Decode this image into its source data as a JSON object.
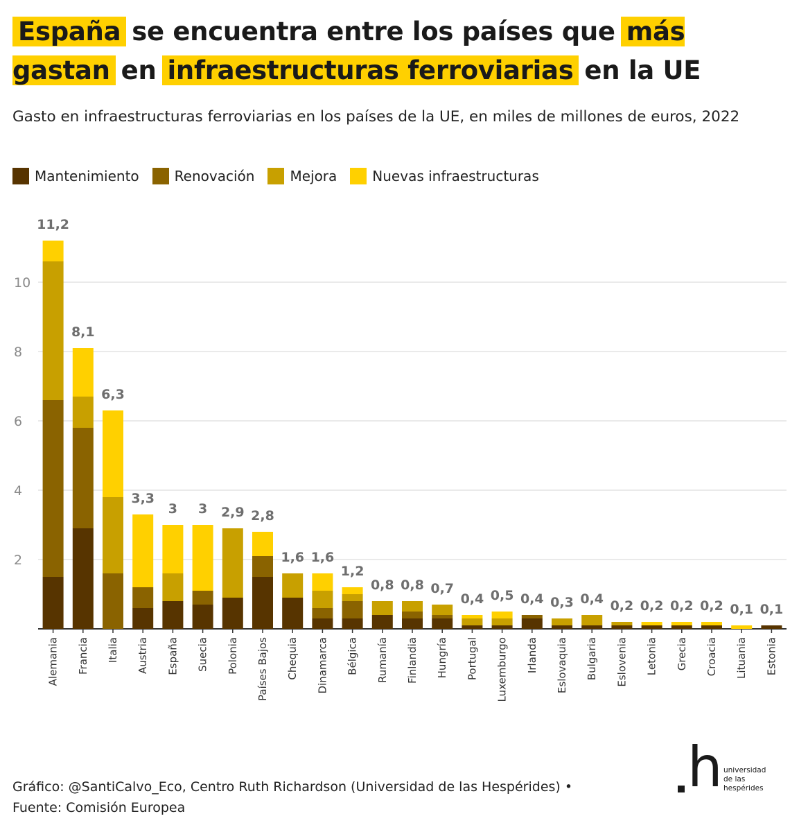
{
  "title": {
    "hl1": "España",
    "t1": "se encuentra entre los países que",
    "hl2": "más gastan",
    "t2": "en",
    "hl3": "infraestructuras ferroviarias",
    "t3": "en la UE"
  },
  "subtitle": "Gasto en infraestructuras ferroviarias en los países de la UE, en miles de millones de euros, 2022",
  "legend": [
    {
      "label": "Mantenimiento",
      "color": "#573400"
    },
    {
      "label": "Renovación",
      "color": "#8a6300"
    },
    {
      "label": "Mejora",
      "color": "#c8a000"
    },
    {
      "label": "Nuevas infraestructuras",
      "color": "#ffd000"
    }
  ],
  "chart_data": {
    "type": "bar",
    "stacked": true,
    "categories": [
      "Alemania",
      "Francia",
      "Italia",
      "Austria",
      "España",
      "Suecia",
      "Polonia",
      "Países Bajos",
      "Chequia",
      "Dinamarca",
      "Bélgica",
      "Rumanía",
      "Finlandia",
      "Hungría",
      "Portugal",
      "Luxemburgo",
      "Irlanda",
      "Eslovaquia",
      "Bulgaria",
      "Eslovenia",
      "Letonia",
      "Grecia",
      "Croacia",
      "Lituania",
      "Estonia"
    ],
    "series": [
      {
        "name": "Mantenimiento",
        "color": "#573400",
        "values": [
          1.5,
          2.9,
          0,
          0.6,
          0.8,
          0.7,
          0.9,
          1.5,
          0.9,
          0.3,
          0.3,
          0.4,
          0.3,
          0.3,
          0.1,
          0.1,
          0.3,
          0.1,
          0.1,
          0.1,
          0.1,
          0.1,
          0.1,
          0,
          0.1
        ]
      },
      {
        "name": "Renovación",
        "color": "#8a6300",
        "values": [
          5.1,
          2.9,
          1.6,
          0.6,
          0,
          0.4,
          0,
          0.6,
          0,
          0.3,
          0.5,
          0,
          0.2,
          0.1,
          0,
          0,
          0.1,
          0,
          0,
          0,
          0,
          0,
          0,
          0,
          0
        ]
      },
      {
        "name": "Mejora",
        "color": "#c8a000",
        "values": [
          4.0,
          0.9,
          2.2,
          0,
          0.8,
          0,
          2.0,
          0,
          0.7,
          0.5,
          0.2,
          0.4,
          0.3,
          0.3,
          0.2,
          0.2,
          0,
          0.2,
          0.3,
          0.1,
          0,
          0,
          0,
          0,
          0
        ]
      },
      {
        "name": "Nuevas infraestructuras",
        "color": "#ffd000",
        "values": [
          0.6,
          1.4,
          2.5,
          2.1,
          1.4,
          1.9,
          0,
          0.7,
          0,
          0.5,
          0.2,
          0,
          0,
          0,
          0.1,
          0.2,
          0,
          0,
          0,
          0,
          0.1,
          0.1,
          0.1,
          0.1,
          0
        ]
      }
    ],
    "totals": [
      "11,2",
      "8,1",
      "6,3",
      "3,3",
      "3",
      "3",
      "2,9",
      "2,8",
      "1,6",
      "1,6",
      "1,2",
      "0,8",
      "0,8",
      "0,7",
      "0,4",
      "0,5",
      "0,4",
      "0,3",
      "0,4",
      "0,2",
      "0,2",
      "0,2",
      "0,2",
      "0,1",
      "0,1"
    ],
    "y_ticks": [
      2,
      4,
      6,
      8,
      10
    ],
    "ylim": [
      0,
      11.2
    ],
    "grid": true
  },
  "footer": {
    "line1": "Gráfico: @SantiCalvo_Eco, Centro Ruth Richardson (Universidad de las Hespérides) •",
    "line2": "Fuente: Comisión Europea"
  },
  "logo": {
    "mark": "h",
    "line1": "universidad",
    "line2": "de las",
    "line3": "hespérides"
  }
}
